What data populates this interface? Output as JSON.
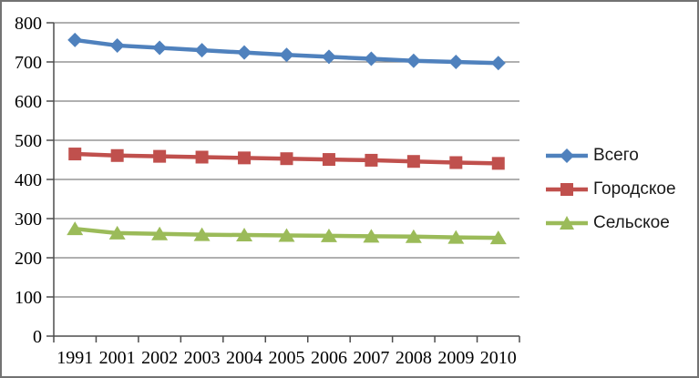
{
  "chart_data": {
    "type": "line",
    "title": "",
    "xlabel": "",
    "ylabel": "",
    "categories": [
      "1991",
      "2001",
      "2002",
      "2003",
      "2004",
      "2005",
      "2006",
      "2007",
      "2008",
      "2009",
      "2010"
    ],
    "series": [
      {
        "name": "Всего",
        "color": "#4F81BD",
        "marker": "diamond",
        "values": [
          756,
          742,
          736,
          730,
          724,
          718,
          713,
          708,
          703,
          700,
          697
        ]
      },
      {
        "name": "Городское",
        "color": "#C0504D",
        "marker": "square",
        "values": [
          465,
          461,
          459,
          457,
          455,
          453,
          451,
          449,
          446,
          443,
          441
        ]
      },
      {
        "name": "Сельское",
        "color": "#9BBB59",
        "marker": "triangle",
        "values": [
          274,
          263,
          261,
          259,
          258,
          257,
          256,
          255,
          254,
          252,
          251
        ]
      }
    ],
    "ylim": [
      0,
      800
    ],
    "ytick_step": 100,
    "yticks": [
      "0",
      "100",
      "200",
      "300",
      "400",
      "500",
      "600",
      "700",
      "800"
    ],
    "grid": true,
    "legend_position": "right",
    "colors": {
      "gridline": "#808080",
      "axis": "#4d4d4d",
      "tick_label": "#000000",
      "frame": "#737373"
    }
  }
}
